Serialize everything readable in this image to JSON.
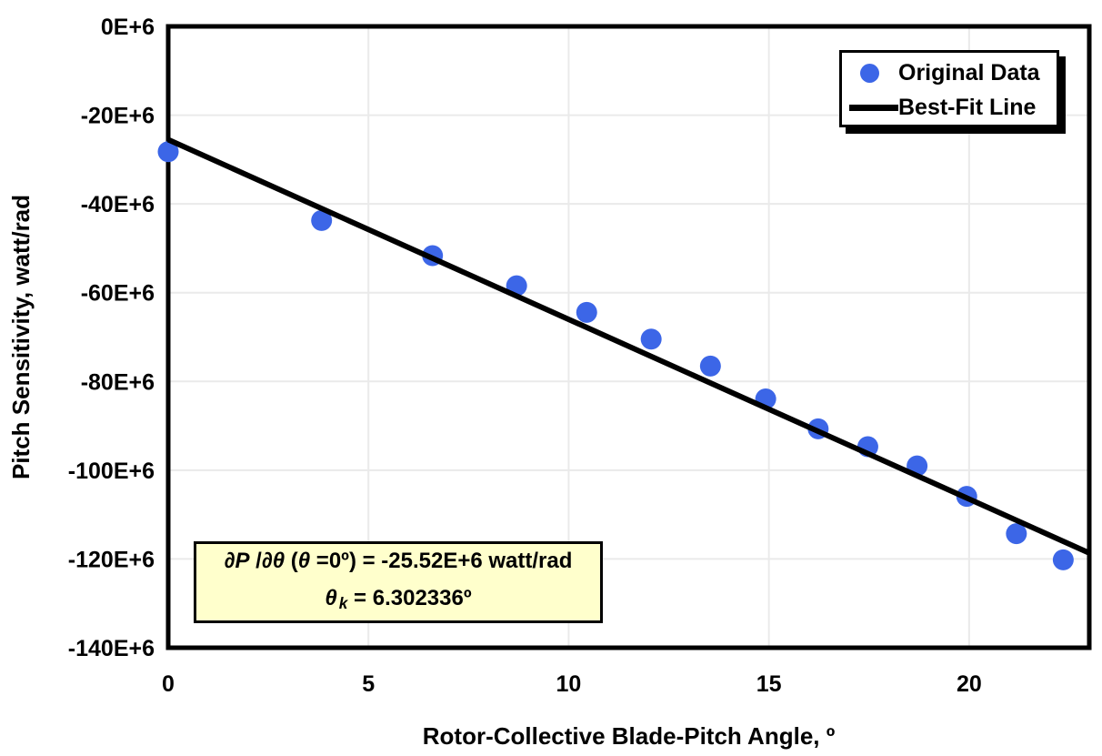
{
  "figure": {
    "background": "#ffffff",
    "plot_border_color": "#000000",
    "gridline_color": "#eaeaea"
  },
  "chart_data": {
    "type": "scatter",
    "title": "",
    "xlabel": "Rotor-Collective Blade-Pitch Angle, º",
    "ylabel": "Pitch Sensitivity, watt/rad",
    "xlim": [
      0,
      23
    ],
    "ylim": [
      -140,
      0
    ],
    "y_unit": "E+6 watt/rad",
    "grid": true,
    "legend_position": "top-right",
    "x_ticks": [
      {
        "v": 0,
        "label": "0"
      },
      {
        "v": 5,
        "label": "5"
      },
      {
        "v": 10,
        "label": "10"
      },
      {
        "v": 15,
        "label": "15"
      },
      {
        "v": 20,
        "label": "20"
      }
    ],
    "y_ticks": [
      {
        "v": 0,
        "label": "0E+6"
      },
      {
        "v": -20,
        "label": "-20E+6"
      },
      {
        "v": -40,
        "label": "-40E+6"
      },
      {
        "v": -60,
        "label": "-60E+6"
      },
      {
        "v": -80,
        "label": "-80E+6"
      },
      {
        "v": -100,
        "label": "-100E+6"
      },
      {
        "v": -120,
        "label": "-120E+6"
      },
      {
        "v": -140,
        "label": "-140E+6"
      }
    ],
    "series": [
      {
        "name": "Original Data",
        "type": "scatter",
        "color": "#3c66e7",
        "marker_radius": 11.5,
        "x": [
          0.0,
          3.83,
          6.6,
          8.7,
          10.45,
          12.06,
          13.54,
          14.92,
          16.23,
          17.47,
          18.7,
          19.94,
          21.18,
          22.35
        ],
        "y": [
          -28.24,
          -43.73,
          -51.66,
          -58.44,
          -64.44,
          -70.46,
          -76.53,
          -83.94,
          -90.67,
          -94.71,
          -99.04,
          -105.9,
          -114.3,
          -120.2
        ]
      },
      {
        "name": "Best-Fit Line",
        "type": "line",
        "color": "#000000",
        "stroke_width": 6,
        "x": [
          0,
          23
        ],
        "y": [
          -25.52,
          -118.65
        ]
      }
    ],
    "fit": {
      "pitch_sensitivity_at_zero_E6": -25.52,
      "theta_k_deg": 6.302336
    }
  },
  "legend": {
    "entries": [
      {
        "label": "Original Data",
        "marker": "dot",
        "color": "#3c66e7"
      },
      {
        "label": "Best-Fit Line",
        "marker": "line",
        "color": "#000000"
      }
    ]
  },
  "annotation": {
    "bg": "#ffffcc",
    "line1": [
      {
        "t": "∂P",
        "i": true
      },
      {
        "t": " /",
        "i": false
      },
      {
        "t": "∂θ",
        "i": true
      },
      {
        "t": " (",
        "i": false
      },
      {
        "t": "θ",
        "i": true
      },
      {
        "t": " =0º) = -25.52E+6 watt/rad",
        "i": false
      }
    ],
    "line2": [
      {
        "t": "θ",
        "i": true
      },
      {
        "t": "k",
        "i": true,
        "sub": true
      },
      {
        "t": " = 6.302336º",
        "i": false
      }
    ]
  }
}
